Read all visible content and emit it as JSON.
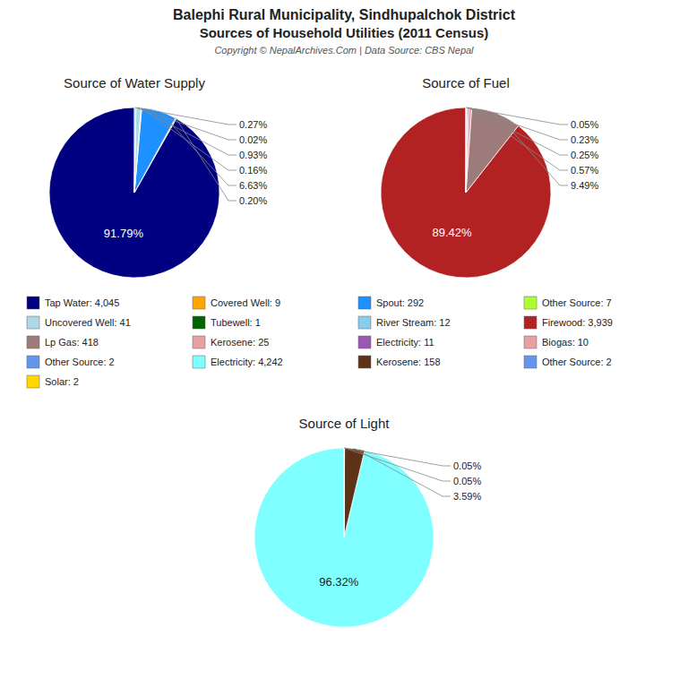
{
  "title": "Balephi Rural Municipality, Sindhupalchok District",
  "subtitle": "Sources of Household Utilities (2011 Census)",
  "annotations": [
    "Copyright © NepalArchives.Com | Data Source: CBS Nepal"
  ],
  "chart_data": [
    {
      "type": "pie",
      "title": "Source of Water Supply",
      "categories": [
        "Tap Water: 4,045",
        "Covered Well: 9",
        "Spout: 292",
        "Other Source: 7",
        "Uncovered Well: 41",
        "Tubewell: 1",
        "River Stream: 12"
      ],
      "values": [
        91.79,
        0.2,
        6.63,
        0.16,
        0.93,
        0.02,
        0.27
      ],
      "value_labels": [
        "91.79%",
        "0.20%",
        "6.63%",
        "0.16%",
        "0.93%",
        "0.02%",
        "0.27%"
      ],
      "colors": [
        "#000080",
        "#FFA500",
        "#1E90FF",
        "#ADFF2F",
        "#ADD8E6",
        "#006400",
        "#87CEEB"
      ],
      "data_labels": true,
      "legend": "center"
    },
    {
      "type": "pie",
      "title": "Source of Fuel",
      "categories": [
        "Firewood: 3,939",
        "Lp Gas: 418",
        "Kerosene: 25",
        "Electricity: 11",
        "Biogas: 10",
        "Other Source: 2"
      ],
      "values": [
        89.42,
        9.49,
        0.57,
        0.25,
        0.23,
        0.05
      ],
      "value_labels": [
        "89.42%",
        "9.49%",
        "0.57%",
        "0.25%",
        "0.23%",
        "0.05%"
      ],
      "colors": [
        "#B22222",
        "#9E7B7B",
        "#E8A0A0",
        "#9B59B6",
        "#E8A0A0",
        "#6495ED"
      ],
      "data_labels": true,
      "legend": "center"
    },
    {
      "type": "pie",
      "title": "Source of Light",
      "categories": [
        "Electricity: 4,242",
        "Kerosene: 158",
        "Other Source: 2",
        "Solar: 2"
      ],
      "values": [
        96.32,
        3.59,
        0.05,
        0.05
      ],
      "value_labels": [
        "96.32%",
        "3.59%",
        "0.05%",
        "0.05%"
      ],
      "colors": [
        "#7FFFFF",
        "#5C3317",
        "#6495ED",
        "#FFD700"
      ],
      "data_labels": true,
      "legend": "center"
    }
  ]
}
